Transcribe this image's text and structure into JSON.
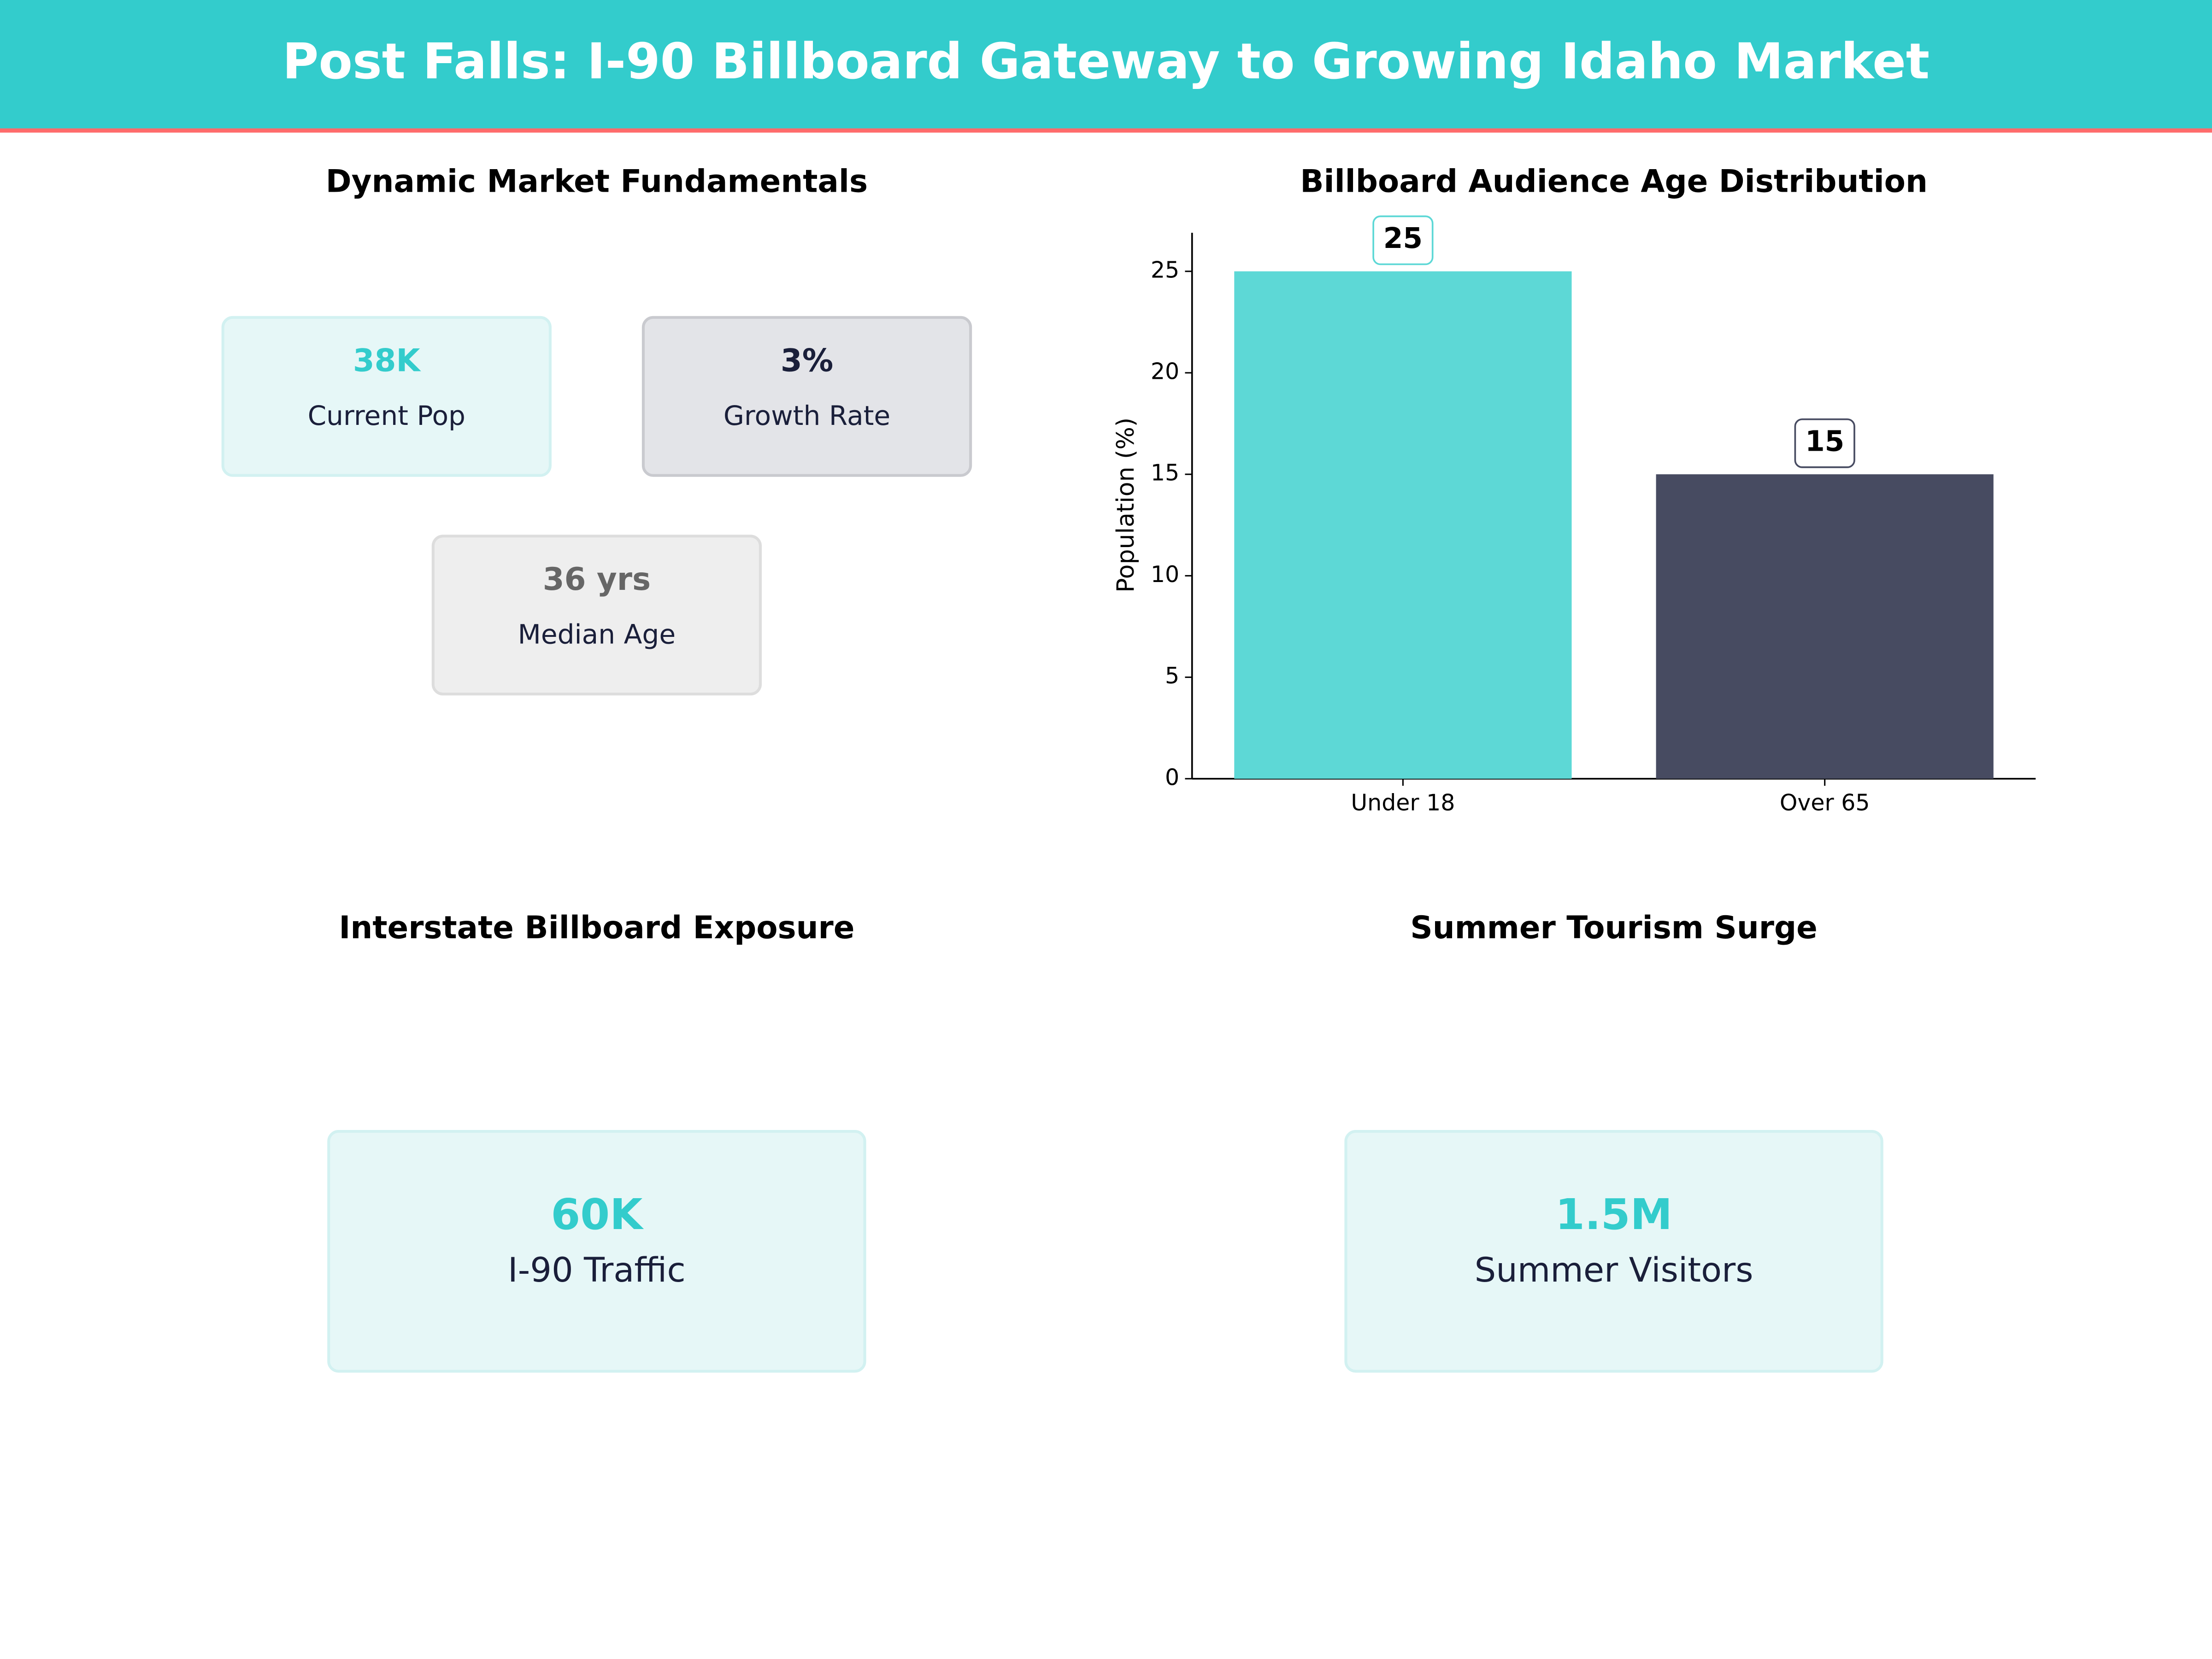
{
  "header": {
    "title": "Post Falls: I-90 Billboard Gateway to Growing Idaho Market"
  },
  "market_fundamentals": {
    "title": "Dynamic Market Fundamentals",
    "cards": [
      {
        "value": "38K",
        "label": "Current Pop"
      },
      {
        "value": "3%",
        "label": "Growth Rate"
      },
      {
        "value": "36 yrs",
        "label": "Median Age"
      }
    ]
  },
  "chart_data": {
    "type": "bar",
    "title": "Billboard Audience Age Distribution",
    "y_label": "Population (%)",
    "categories": [
      "Under 18",
      "Over 65"
    ],
    "values": [
      25,
      15
    ],
    "colors": [
      "#5dd8d6",
      "#474b61"
    ],
    "ylim": [
      0,
      26.9
    ],
    "yticks": [
      0,
      5,
      10,
      15,
      20,
      25
    ]
  },
  "exposure": {
    "title": "Interstate Billboard Exposure",
    "value": "60K",
    "label": "I-90 Traffic"
  },
  "tourism": {
    "title": "Summer Tourism Surge",
    "value": "1.5M",
    "label": "Summer Visitors"
  }
}
